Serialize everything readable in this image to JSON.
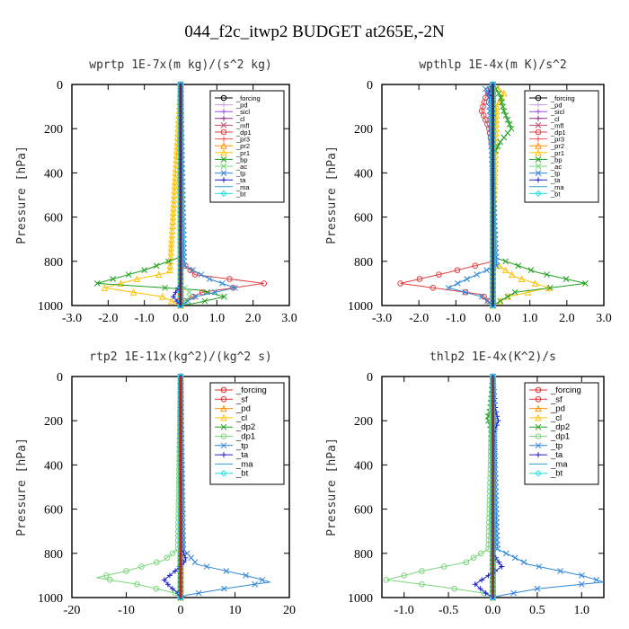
{
  "figure": {
    "title": "044_f2c_itwp2  BUDGET at265E,-2N"
  },
  "chart_data": [
    {
      "type": "line",
      "title": "wprtp  1E-7x(m kg)/(s^2 kg)",
      "ylabel": "Pressure [hPa]",
      "xlim": [
        -3,
        3
      ],
      "ylim": [
        1000,
        0
      ],
      "xticks": [
        "-3.0",
        "-2.0",
        "-1.0",
        "0.0",
        "1.0",
        "2.0",
        "3.0"
      ],
      "yticks": [
        "0",
        "200",
        "400",
        "600",
        "800",
        "1000"
      ],
      "legend_position": "top-right",
      "series": [
        {
          "name": "_forcing",
          "color": "#000000",
          "marker": "o",
          "y": [
            0,
            200,
            400,
            600,
            800,
            900,
            1000
          ],
          "x": [
            0,
            0,
            0,
            0,
            0,
            0,
            0
          ]
        },
        {
          "name": "_pd",
          "color": "#c8a0e0",
          "marker": "+",
          "y": [
            0,
            200,
            400,
            600,
            800,
            900,
            1000
          ],
          "x": [
            0,
            0,
            0,
            0,
            0,
            0,
            0
          ]
        },
        {
          "name": "_sicl",
          "color": "#9b4fd8",
          "marker": "+",
          "y": [
            0,
            200,
            400,
            600,
            800,
            900,
            1000
          ],
          "x": [
            0,
            0,
            0,
            0,
            0,
            0,
            0
          ]
        },
        {
          "name": "_cl",
          "color": "#8b2a8b",
          "marker": "+",
          "y": [
            0,
            200,
            400,
            600,
            800,
            900,
            1000
          ],
          "x": [
            0,
            0,
            0,
            0,
            0,
            0,
            0
          ]
        },
        {
          "name": "_mfl",
          "color": "#c0506a",
          "marker": "x",
          "y": [
            0,
            200,
            400,
            600,
            800,
            900,
            1000
          ],
          "x": [
            0,
            0,
            0,
            0,
            0,
            0,
            0
          ]
        },
        {
          "name": "_dp1",
          "color": "#e04040",
          "marker": "o",
          "y": [
            0,
            800,
            860,
            900,
            940,
            980,
            1000
          ],
          "x": [
            0,
            0,
            0.4,
            2.3,
            0.6,
            0.1,
            0
          ]
        },
        {
          "name": "_pr3",
          "color": "#ff5050",
          "marker": "+",
          "y": [
            0,
            800,
            900,
            1000
          ],
          "x": [
            0,
            0,
            0,
            0
          ]
        },
        {
          "name": "_pr2",
          "color": "#ff9000",
          "marker": "^",
          "y": [
            0,
            800,
            900,
            1000
          ],
          "x": [
            0,
            0,
            0,
            0
          ]
        },
        {
          "name": "_pr1",
          "color": "#ffc000",
          "marker": "^",
          "y": [
            0,
            850,
            880,
            920,
            960,
            1000
          ],
          "x": [
            0,
            -0.3,
            -1.2,
            -2.1,
            -0.5,
            0
          ]
        },
        {
          "name": "_bp",
          "color": "#20a020",
          "marker": "x",
          "y": [
            0,
            780,
            840,
            900,
            930,
            960,
            990,
            1000
          ],
          "x": [
            0,
            0,
            -1.0,
            -2.3,
            0.5,
            1.2,
            0.4,
            0
          ]
        },
        {
          "name": "_ac",
          "color": "#7ad67a",
          "marker": "x",
          "y": [
            0,
            900,
            950,
            1000
          ],
          "x": [
            0,
            0,
            0.3,
            0
          ]
        },
        {
          "name": "_tp",
          "color": "#2f86d8",
          "marker": "x",
          "y": [
            0,
            820,
            880,
            920,
            960,
            1000
          ],
          "x": [
            0,
            0.1,
            0.8,
            1.5,
            0.4,
            0
          ]
        },
        {
          "name": "_ta",
          "color": "#2020c8",
          "marker": "+",
          "y": [
            0,
            900,
            960,
            1000
          ],
          "x": [
            0,
            0,
            -0.2,
            0
          ]
        },
        {
          "name": "_ma",
          "color": "#30a0c8",
          "marker": "-",
          "y": [
            0,
            1000
          ],
          "x": [
            0,
            0
          ]
        },
        {
          "name": "_bt",
          "color": "#20e0e0",
          "marker": "D",
          "y": [
            0,
            1000
          ],
          "x": [
            0,
            0
          ]
        }
      ]
    },
    {
      "type": "line",
      "title": "wpthlp  1E-4x(m K)/s^2",
      "ylabel": "Pressure [hPa]",
      "xlim": [
        -3,
        3
      ],
      "ylim": [
        1000,
        0
      ],
      "xticks": [
        "-3.0",
        "-2.0",
        "-1.0",
        "0.0",
        "1.0",
        "2.0",
        "3.0"
      ],
      "yticks": [
        "0",
        "200",
        "400",
        "600",
        "800",
        "1000"
      ],
      "legend_position": "top-right",
      "series": [
        {
          "name": "_forcing",
          "color": "#000000",
          "marker": "o",
          "y": [
            0,
            1000
          ],
          "x": [
            0,
            0
          ]
        },
        {
          "name": "_pd",
          "color": "#c8a0e0",
          "marker": "+",
          "y": [
            0,
            1000
          ],
          "x": [
            0,
            0
          ]
        },
        {
          "name": "_sicl",
          "color": "#9b4fd8",
          "marker": "+",
          "y": [
            0,
            1000
          ],
          "x": [
            0,
            0
          ]
        },
        {
          "name": "_cl",
          "color": "#8b2a8b",
          "marker": "+",
          "y": [
            0,
            1000
          ],
          "x": [
            0,
            0
          ]
        },
        {
          "name": "_mfl",
          "color": "#c0506a",
          "marker": "x",
          "y": [
            0,
            1000
          ],
          "x": [
            0,
            0
          ]
        },
        {
          "name": "_dp1",
          "color": "#e04040",
          "marker": "o",
          "y": [
            0,
            60,
            120,
            160,
            200,
            250,
            300,
            800,
            850,
            900,
            950,
            1000
          ],
          "x": [
            0,
            -0.2,
            -0.3,
            -0.2,
            -0.1,
            -0.05,
            0,
            0,
            -1.2,
            -2.5,
            -0.3,
            0
          ]
        },
        {
          "name": "_pr3",
          "color": "#ff5050",
          "marker": "+",
          "y": [
            0,
            1000
          ],
          "x": [
            0,
            0
          ]
        },
        {
          "name": "_pr2",
          "color": "#ff9000",
          "marker": "^",
          "y": [
            0,
            1000
          ],
          "x": [
            0,
            0
          ]
        },
        {
          "name": "_pr1",
          "color": "#ffc000",
          "marker": "^",
          "y": [
            0,
            40,
            100,
            800,
            870,
            920,
            960,
            1000
          ],
          "x": [
            0,
            0.3,
            0.1,
            0,
            0.6,
            1.5,
            0.4,
            0
          ]
        },
        {
          "name": "_bp",
          "color": "#20a020",
          "marker": "x",
          "y": [
            0,
            50,
            120,
            200,
            260,
            320,
            780,
            850,
            900,
            940,
            980,
            1000
          ],
          "x": [
            0,
            0.2,
            0.3,
            0.5,
            0.2,
            0,
            0,
            1.2,
            2.5,
            0.6,
            0.2,
            0
          ]
        },
        {
          "name": "_ac",
          "color": "#7ad67a",
          "marker": "x",
          "y": [
            0,
            1000
          ],
          "x": [
            0,
            0
          ]
        },
        {
          "name": "_tp",
          "color": "#2f86d8",
          "marker": "x",
          "y": [
            0,
            20,
            60,
            820,
            880,
            920,
            960,
            1000
          ],
          "x": [
            0,
            -0.2,
            -0.1,
            0.1,
            -0.7,
            -1.2,
            -0.3,
            0
          ]
        },
        {
          "name": "_ta",
          "color": "#2020c8",
          "marker": "+",
          "y": [
            0,
            30,
            80,
            1000
          ],
          "x": [
            0,
            -0.1,
            0,
            0
          ]
        },
        {
          "name": "_ma",
          "color": "#30a0c8",
          "marker": "-",
          "y": [
            0,
            1000
          ],
          "x": [
            0,
            0
          ]
        },
        {
          "name": "_bt",
          "color": "#20e0e0",
          "marker": "D",
          "y": [
            0,
            1000
          ],
          "x": [
            0,
            0
          ]
        }
      ]
    },
    {
      "type": "line",
      "title": "rtp2  1E-11x(kg^2)/(kg^2 s)",
      "ylabel": "Pressure [hPa]",
      "xlim": [
        -20,
        20
      ],
      "ylim": [
        1000,
        0
      ],
      "xticks": [
        "-20",
        "-10",
        "0",
        "10",
        "20"
      ],
      "yticks": [
        "0",
        "200",
        "400",
        "600",
        "800",
        "1000"
      ],
      "legend_position": "top-right",
      "series": [
        {
          "name": "_forcing",
          "color": "#e03030",
          "marker": "o",
          "y": [
            0,
            200,
            400,
            600,
            800,
            900,
            1000
          ],
          "x": [
            0,
            0,
            0,
            0,
            0,
            0,
            0
          ]
        },
        {
          "name": "_sf",
          "color": "#e03030",
          "marker": "o",
          "y": [
            0,
            1000
          ],
          "x": [
            0,
            0
          ]
        },
        {
          "name": "_pd",
          "color": "#ff9000",
          "marker": "^",
          "y": [
            0,
            1000
          ],
          "x": [
            0,
            0
          ]
        },
        {
          "name": "_cl",
          "color": "#ffc000",
          "marker": "^",
          "y": [
            0,
            1000
          ],
          "x": [
            0,
            0
          ]
        },
        {
          "name": "_dp2",
          "color": "#20a020",
          "marker": "x",
          "y": [
            0,
            1000
          ],
          "x": [
            0,
            0
          ]
        },
        {
          "name": "_dp1",
          "color": "#7ad67a",
          "marker": "o",
          "y": [
            0,
            780,
            830,
            880,
            910,
            940,
            980,
            1000
          ],
          "x": [
            0,
            -0.5,
            -3,
            -10,
            -15.5,
            -8,
            -1,
            0
          ]
        },
        {
          "name": "_tp",
          "color": "#2f86d8",
          "marker": "x",
          "y": [
            0,
            780,
            850,
            900,
            930,
            960,
            990,
            1000
          ],
          "x": [
            0,
            0.5,
            3,
            12,
            16.5,
            8,
            1,
            0
          ]
        },
        {
          "name": "_ta",
          "color": "#2020c8",
          "marker": "+",
          "y": [
            0,
            780,
            830,
            880,
            920,
            950,
            980,
            1000
          ],
          "x": [
            0,
            0.3,
            1,
            -1,
            -3,
            -2,
            -0.5,
            0
          ]
        },
        {
          "name": "_ma",
          "color": "#30a0c8",
          "marker": "-",
          "y": [
            0,
            1000
          ],
          "x": [
            0,
            0
          ]
        },
        {
          "name": "_bt",
          "color": "#20e0e0",
          "marker": "D",
          "y": [
            0,
            1000
          ],
          "x": [
            0,
            0
          ]
        }
      ]
    },
    {
      "type": "line",
      "title": "thlp2  1E-4x(K^2)/s",
      "ylabel": "Pressure [hPa]",
      "xlim": [
        -1.25,
        1.25
      ],
      "ylim": [
        1000,
        0
      ],
      "xticks": [
        "-1.0",
        "-0.5",
        "0.0",
        "0.5",
        "1.0"
      ],
      "yticks": [
        "0",
        "200",
        "400",
        "600",
        "800",
        "1000"
      ],
      "legend_position": "top-right",
      "series": [
        {
          "name": "_forcing",
          "color": "#e03030",
          "marker": "o",
          "y": [
            0,
            200,
            400,
            600,
            800,
            900,
            1000
          ],
          "x": [
            0,
            0,
            0,
            0,
            0,
            0,
            0
          ]
        },
        {
          "name": "_sf",
          "color": "#e03030",
          "marker": "o",
          "y": [
            0,
            1000
          ],
          "x": [
            0,
            0
          ]
        },
        {
          "name": "_pd",
          "color": "#ff9000",
          "marker": "^",
          "y": [
            0,
            1000
          ],
          "x": [
            0,
            0
          ]
        },
        {
          "name": "_cl",
          "color": "#ffc000",
          "marker": "^",
          "y": [
            0,
            1000
          ],
          "x": [
            0,
            0
          ]
        },
        {
          "name": "_dp2",
          "color": "#20a020",
          "marker": "x",
          "y": [
            0,
            150,
            190,
            230,
            1000
          ],
          "x": [
            0,
            -0.03,
            -0.06,
            -0.02,
            0
          ]
        },
        {
          "name": "_dp1",
          "color": "#7ad67a",
          "marker": "o",
          "y": [
            0,
            780,
            840,
            880,
            920,
            950,
            980,
            1000
          ],
          "x": [
            0,
            -0.05,
            -0.3,
            -0.8,
            -1.2,
            -0.6,
            -0.1,
            0
          ]
        },
        {
          "name": "_tp",
          "color": "#2f86d8",
          "marker": "x",
          "y": [
            0,
            780,
            850,
            900,
            930,
            960,
            990,
            1000
          ],
          "x": [
            0,
            0.05,
            0.4,
            1.0,
            1.25,
            0.5,
            0.1,
            0
          ]
        },
        {
          "name": "_ta",
          "color": "#2020c8",
          "marker": "+",
          "y": [
            0,
            150,
            200,
            250,
            800,
            860,
            900,
            940,
            980,
            1000
          ],
          "x": [
            0,
            0.03,
            0.06,
            0.02,
            0,
            0.1,
            -0.05,
            -0.2,
            -0.08,
            0
          ]
        },
        {
          "name": "_ma",
          "color": "#30a0c8",
          "marker": "-",
          "y": [
            0,
            1000
          ],
          "x": [
            0,
            0
          ]
        },
        {
          "name": "_bt",
          "color": "#20e0e0",
          "marker": "D",
          "y": [
            0,
            1000
          ],
          "x": [
            0,
            0
          ]
        }
      ]
    }
  ]
}
